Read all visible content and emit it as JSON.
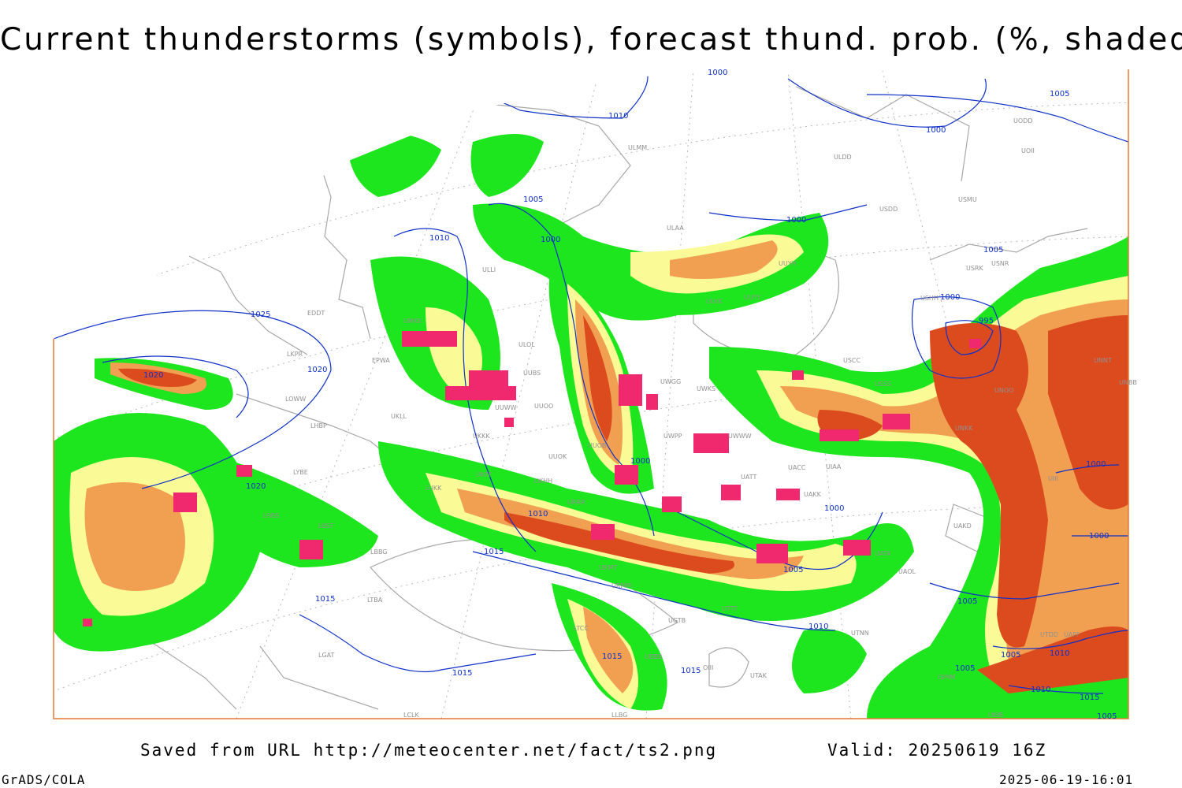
{
  "title": "Current thunderstorms (symbols), forecast thund. prob. (%, shaded)",
  "footer": {
    "saved": "Saved from URL http://meteocenter.net/fact/ts2.png",
    "valid": "Valid: 20250619 16Z",
    "software": "GrADS/COLA",
    "generated": "2025-06-19-16:01"
  },
  "colors": {
    "isobar": "#1030c8",
    "border": "#a8a8a8",
    "grid": "#b8b8b8",
    "prob_low": "#1ee61e",
    "prob_mid": "#fafa96",
    "prob_high": "#f0a050",
    "prob_max": "#dc4b1e",
    "storm_symbol": "#f0286e",
    "frame": "#e67832"
  },
  "isobar_labels": [
    "1000",
    "1005",
    "1010",
    "1015",
    "1020",
    "1025",
    "995"
  ],
  "stations": [
    "ULMM",
    "ULDD",
    "USDD",
    "UOII",
    "UODD",
    "USMU",
    "ULAA",
    "USRK",
    "USNR",
    "USHH",
    "ULKK",
    "UUYY",
    "UUYH",
    "EDDT",
    "LKPR",
    "EPWA",
    "ULLI",
    "UMKK",
    "ULOL",
    "UUBS",
    "UUOO",
    "UUWW",
    "UWGG",
    "UWKS",
    "USCC",
    "USSS",
    "UNNT",
    "UNBB",
    "UNOO",
    "UNKK",
    "UIAA",
    "UIII",
    "LOWW",
    "LHBP",
    "UKLL",
    "UKKK",
    "UUOB",
    "UWPP",
    "UWWW",
    "LYBE",
    "LRBS",
    "UKHH",
    "UUOK",
    "URRR",
    "UATT",
    "UACC",
    "UAKK",
    "UAKD",
    "LUKK",
    "LBSF",
    "LBBG",
    "UKFF",
    "URMM",
    "URMT",
    "UGTB",
    "UBBB",
    "UTTT",
    "UTAK",
    "UTNN",
    "UAOL",
    "UATA",
    "LTBA",
    "LGAT",
    "LTCC",
    "OIII",
    "OIMM",
    "UTDD",
    "UAFF",
    "LLBG",
    "LCLK",
    "UIBB"
  ],
  "map_legend": {
    "shading": "forecast thunderstorm probability (%)",
    "symbols": "current thunderstorms"
  }
}
